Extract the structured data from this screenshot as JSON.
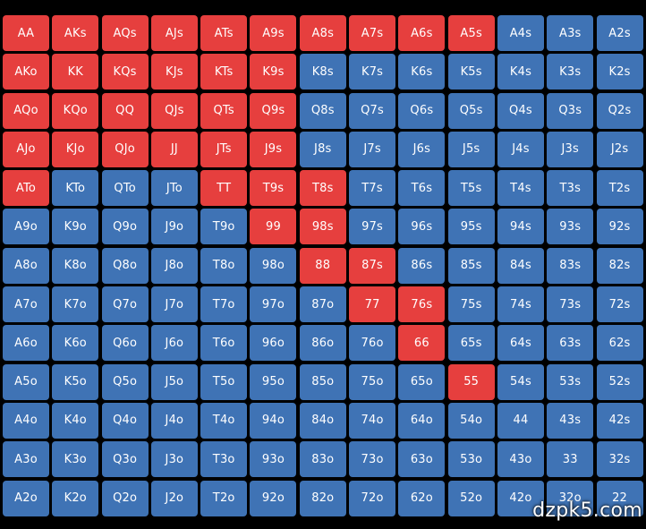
{
  "colors": {
    "raise": "#e63f3e",
    "fold": "#3f73b5"
  },
  "watermark": "dzpk5.com",
  "grid": [
    [
      {
        "h": "AA",
        "c": "raise"
      },
      {
        "h": "AKs",
        "c": "raise"
      },
      {
        "h": "AQs",
        "c": "raise"
      },
      {
        "h": "AJs",
        "c": "raise"
      },
      {
        "h": "ATs",
        "c": "raise"
      },
      {
        "h": "A9s",
        "c": "raise"
      },
      {
        "h": "A8s",
        "c": "raise"
      },
      {
        "h": "A7s",
        "c": "raise"
      },
      {
        "h": "A6s",
        "c": "raise"
      },
      {
        "h": "A5s",
        "c": "raise"
      },
      {
        "h": "A4s",
        "c": "fold"
      },
      {
        "h": "A3s",
        "c": "fold"
      },
      {
        "h": "A2s",
        "c": "fold"
      }
    ],
    [
      {
        "h": "AKo",
        "c": "raise"
      },
      {
        "h": "KK",
        "c": "raise"
      },
      {
        "h": "KQs",
        "c": "raise"
      },
      {
        "h": "KJs",
        "c": "raise"
      },
      {
        "h": "KTs",
        "c": "raise"
      },
      {
        "h": "K9s",
        "c": "raise"
      },
      {
        "h": "K8s",
        "c": "fold"
      },
      {
        "h": "K7s",
        "c": "fold"
      },
      {
        "h": "K6s",
        "c": "fold"
      },
      {
        "h": "K5s",
        "c": "fold"
      },
      {
        "h": "K4s",
        "c": "fold"
      },
      {
        "h": "K3s",
        "c": "fold"
      },
      {
        "h": "K2s",
        "c": "fold"
      }
    ],
    [
      {
        "h": "AQo",
        "c": "raise"
      },
      {
        "h": "KQo",
        "c": "raise"
      },
      {
        "h": "QQ",
        "c": "raise"
      },
      {
        "h": "QJs",
        "c": "raise"
      },
      {
        "h": "QTs",
        "c": "raise"
      },
      {
        "h": "Q9s",
        "c": "raise"
      },
      {
        "h": "Q8s",
        "c": "fold"
      },
      {
        "h": "Q7s",
        "c": "fold"
      },
      {
        "h": "Q6s",
        "c": "fold"
      },
      {
        "h": "Q5s",
        "c": "fold"
      },
      {
        "h": "Q4s",
        "c": "fold"
      },
      {
        "h": "Q3s",
        "c": "fold"
      },
      {
        "h": "Q2s",
        "c": "fold"
      }
    ],
    [
      {
        "h": "AJo",
        "c": "raise"
      },
      {
        "h": "KJo",
        "c": "raise"
      },
      {
        "h": "QJo",
        "c": "raise"
      },
      {
        "h": "JJ",
        "c": "raise"
      },
      {
        "h": "JTs",
        "c": "raise"
      },
      {
        "h": "J9s",
        "c": "raise"
      },
      {
        "h": "J8s",
        "c": "fold"
      },
      {
        "h": "J7s",
        "c": "fold"
      },
      {
        "h": "J6s",
        "c": "fold"
      },
      {
        "h": "J5s",
        "c": "fold"
      },
      {
        "h": "J4s",
        "c": "fold"
      },
      {
        "h": "J3s",
        "c": "fold"
      },
      {
        "h": "J2s",
        "c": "fold"
      }
    ],
    [
      {
        "h": "ATo",
        "c": "raise"
      },
      {
        "h": "KTo",
        "c": "fold"
      },
      {
        "h": "QTo",
        "c": "fold"
      },
      {
        "h": "JTo",
        "c": "fold"
      },
      {
        "h": "TT",
        "c": "raise"
      },
      {
        "h": "T9s",
        "c": "raise"
      },
      {
        "h": "T8s",
        "c": "raise"
      },
      {
        "h": "T7s",
        "c": "fold"
      },
      {
        "h": "T6s",
        "c": "fold"
      },
      {
        "h": "T5s",
        "c": "fold"
      },
      {
        "h": "T4s",
        "c": "fold"
      },
      {
        "h": "T3s",
        "c": "fold"
      },
      {
        "h": "T2s",
        "c": "fold"
      }
    ],
    [
      {
        "h": "A9o",
        "c": "fold"
      },
      {
        "h": "K9o",
        "c": "fold"
      },
      {
        "h": "Q9o",
        "c": "fold"
      },
      {
        "h": "J9o",
        "c": "fold"
      },
      {
        "h": "T9o",
        "c": "fold"
      },
      {
        "h": "99",
        "c": "raise"
      },
      {
        "h": "98s",
        "c": "raise"
      },
      {
        "h": "97s",
        "c": "fold"
      },
      {
        "h": "96s",
        "c": "fold"
      },
      {
        "h": "95s",
        "c": "fold"
      },
      {
        "h": "94s",
        "c": "fold"
      },
      {
        "h": "93s",
        "c": "fold"
      },
      {
        "h": "92s",
        "c": "fold"
      }
    ],
    [
      {
        "h": "A8o",
        "c": "fold"
      },
      {
        "h": "K8o",
        "c": "fold"
      },
      {
        "h": "Q8o",
        "c": "fold"
      },
      {
        "h": "J8o",
        "c": "fold"
      },
      {
        "h": "T8o",
        "c": "fold"
      },
      {
        "h": "98o",
        "c": "fold"
      },
      {
        "h": "88",
        "c": "raise"
      },
      {
        "h": "87s",
        "c": "raise"
      },
      {
        "h": "86s",
        "c": "fold"
      },
      {
        "h": "85s",
        "c": "fold"
      },
      {
        "h": "84s",
        "c": "fold"
      },
      {
        "h": "83s",
        "c": "fold"
      },
      {
        "h": "82s",
        "c": "fold"
      }
    ],
    [
      {
        "h": "A7o",
        "c": "fold"
      },
      {
        "h": "K7o",
        "c": "fold"
      },
      {
        "h": "Q7o",
        "c": "fold"
      },
      {
        "h": "J7o",
        "c": "fold"
      },
      {
        "h": "T7o",
        "c": "fold"
      },
      {
        "h": "97o",
        "c": "fold"
      },
      {
        "h": "87o",
        "c": "fold"
      },
      {
        "h": "77",
        "c": "raise"
      },
      {
        "h": "76s",
        "c": "raise"
      },
      {
        "h": "75s",
        "c": "fold"
      },
      {
        "h": "74s",
        "c": "fold"
      },
      {
        "h": "73s",
        "c": "fold"
      },
      {
        "h": "72s",
        "c": "fold"
      }
    ],
    [
      {
        "h": "A6o",
        "c": "fold"
      },
      {
        "h": "K6o",
        "c": "fold"
      },
      {
        "h": "Q6o",
        "c": "fold"
      },
      {
        "h": "J6o",
        "c": "fold"
      },
      {
        "h": "T6o",
        "c": "fold"
      },
      {
        "h": "96o",
        "c": "fold"
      },
      {
        "h": "86o",
        "c": "fold"
      },
      {
        "h": "76o",
        "c": "fold"
      },
      {
        "h": "66",
        "c": "raise"
      },
      {
        "h": "65s",
        "c": "fold"
      },
      {
        "h": "64s",
        "c": "fold"
      },
      {
        "h": "63s",
        "c": "fold"
      },
      {
        "h": "62s",
        "c": "fold"
      }
    ],
    [
      {
        "h": "A5o",
        "c": "fold"
      },
      {
        "h": "K5o",
        "c": "fold"
      },
      {
        "h": "Q5o",
        "c": "fold"
      },
      {
        "h": "J5o",
        "c": "fold"
      },
      {
        "h": "T5o",
        "c": "fold"
      },
      {
        "h": "95o",
        "c": "fold"
      },
      {
        "h": "85o",
        "c": "fold"
      },
      {
        "h": "75o",
        "c": "fold"
      },
      {
        "h": "65o",
        "c": "fold"
      },
      {
        "h": "55",
        "c": "raise"
      },
      {
        "h": "54s",
        "c": "fold"
      },
      {
        "h": "53s",
        "c": "fold"
      },
      {
        "h": "52s",
        "c": "fold"
      }
    ],
    [
      {
        "h": "A4o",
        "c": "fold"
      },
      {
        "h": "K4o",
        "c": "fold"
      },
      {
        "h": "Q4o",
        "c": "fold"
      },
      {
        "h": "J4o",
        "c": "fold"
      },
      {
        "h": "T4o",
        "c": "fold"
      },
      {
        "h": "94o",
        "c": "fold"
      },
      {
        "h": "84o",
        "c": "fold"
      },
      {
        "h": "74o",
        "c": "fold"
      },
      {
        "h": "64o",
        "c": "fold"
      },
      {
        "h": "54o",
        "c": "fold"
      },
      {
        "h": "44",
        "c": "fold"
      },
      {
        "h": "43s",
        "c": "fold"
      },
      {
        "h": "42s",
        "c": "fold"
      }
    ],
    [
      {
        "h": "A3o",
        "c": "fold"
      },
      {
        "h": "K3o",
        "c": "fold"
      },
      {
        "h": "Q3o",
        "c": "fold"
      },
      {
        "h": "J3o",
        "c": "fold"
      },
      {
        "h": "T3o",
        "c": "fold"
      },
      {
        "h": "93o",
        "c": "fold"
      },
      {
        "h": "83o",
        "c": "fold"
      },
      {
        "h": "73o",
        "c": "fold"
      },
      {
        "h": "63o",
        "c": "fold"
      },
      {
        "h": "53o",
        "c": "fold"
      },
      {
        "h": "43o",
        "c": "fold"
      },
      {
        "h": "33",
        "c": "fold"
      },
      {
        "h": "32s",
        "c": "fold"
      }
    ],
    [
      {
        "h": "A2o",
        "c": "fold"
      },
      {
        "h": "K2o",
        "c": "fold"
      },
      {
        "h": "Q2o",
        "c": "fold"
      },
      {
        "h": "J2o",
        "c": "fold"
      },
      {
        "h": "T2o",
        "c": "fold"
      },
      {
        "h": "92o",
        "c": "fold"
      },
      {
        "h": "82o",
        "c": "fold"
      },
      {
        "h": "72o",
        "c": "fold"
      },
      {
        "h": "62o",
        "c": "fold"
      },
      {
        "h": "52o",
        "c": "fold"
      },
      {
        "h": "42o",
        "c": "fold"
      },
      {
        "h": "32o",
        "c": "fold"
      },
      {
        "h": "22",
        "c": "fold"
      }
    ]
  ]
}
